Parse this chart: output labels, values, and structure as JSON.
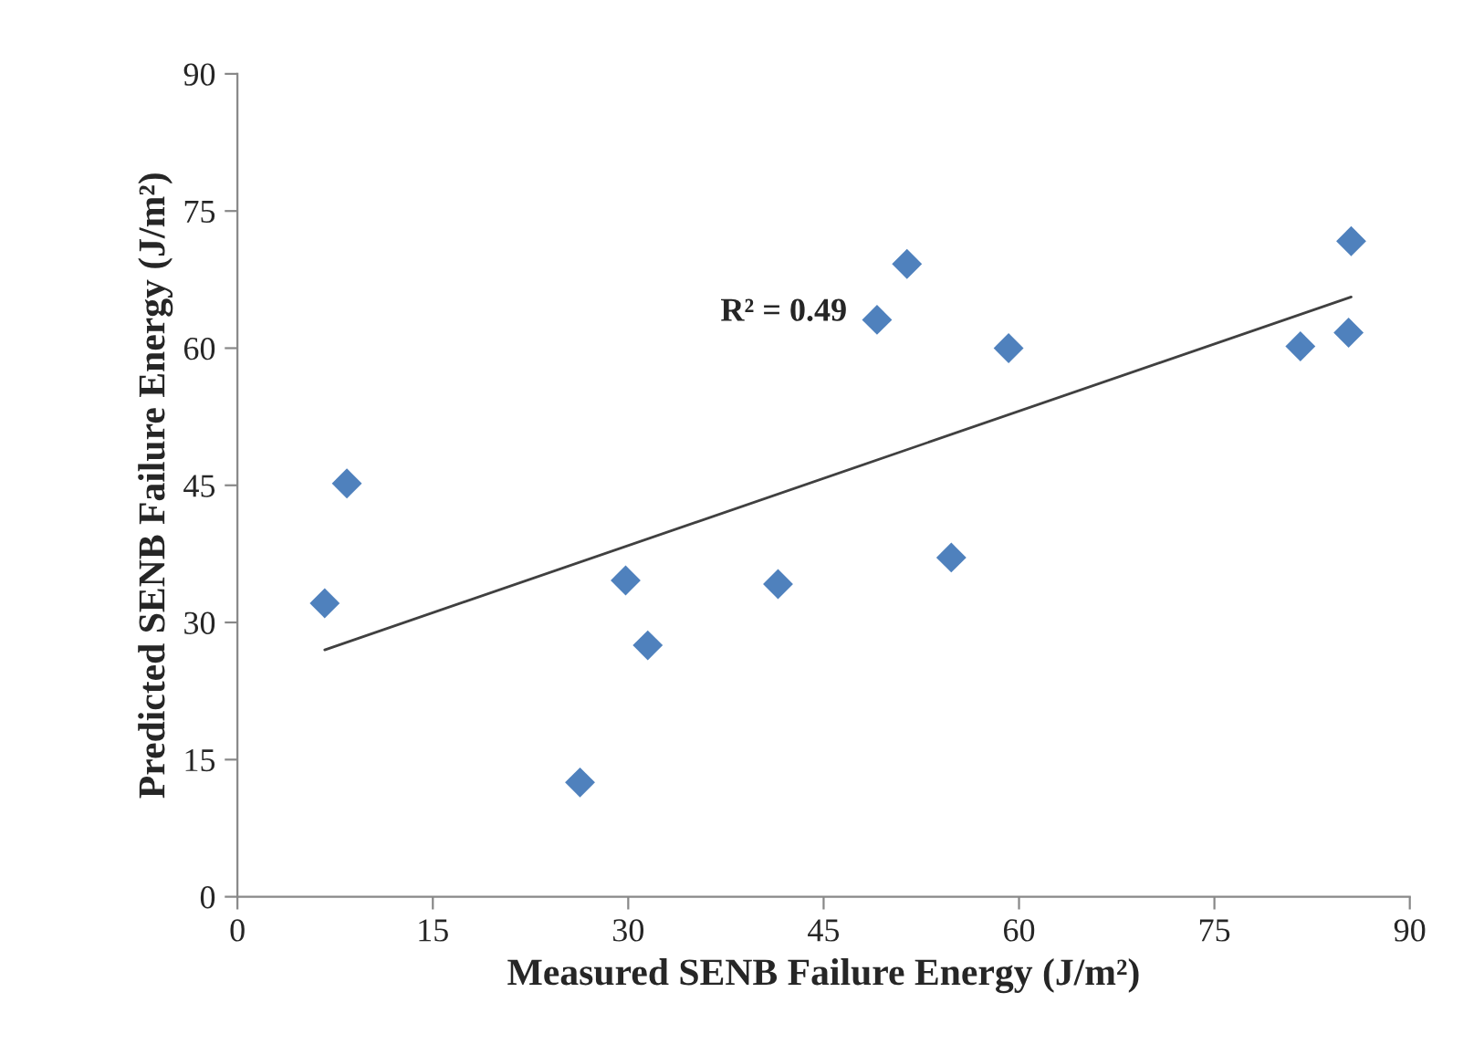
{
  "chart_data": {
    "type": "scatter",
    "xlabel": "Measured SENB Failure Energy (J/m²)",
    "ylabel": "Predicted SENB Failure Energy (J/m²)",
    "annotations": [
      "R² = 0.49"
    ],
    "marker": "diamond",
    "grid": false,
    "xlim": [
      0,
      90
    ],
    "xticks": [
      0,
      15,
      30,
      45,
      60,
      75,
      90
    ],
    "ylim": [
      0,
      90
    ],
    "yticks": [
      0,
      15,
      30,
      45,
      60,
      75,
      90
    ],
    "series": [
      {
        "color": "#4f81bd",
        "x": [
          6.7,
          8.4,
          26.3,
          29.8,
          31.5,
          41.5,
          49.1,
          51.4,
          54.8,
          59.2,
          81.6,
          85.3,
          85.5
        ],
        "values": [
          32.1,
          45.2,
          12.5,
          34.6,
          27.5,
          34.2,
          63.1,
          69.2,
          37.1,
          60,
          60.2,
          61.7,
          71.7
        ]
      },
      {
        "type": "line",
        "color": "#404040",
        "x": [
          6.7,
          85.5
        ],
        "values": [
          27,
          65.6
        ],
        "marker": "none"
      }
    ]
  }
}
